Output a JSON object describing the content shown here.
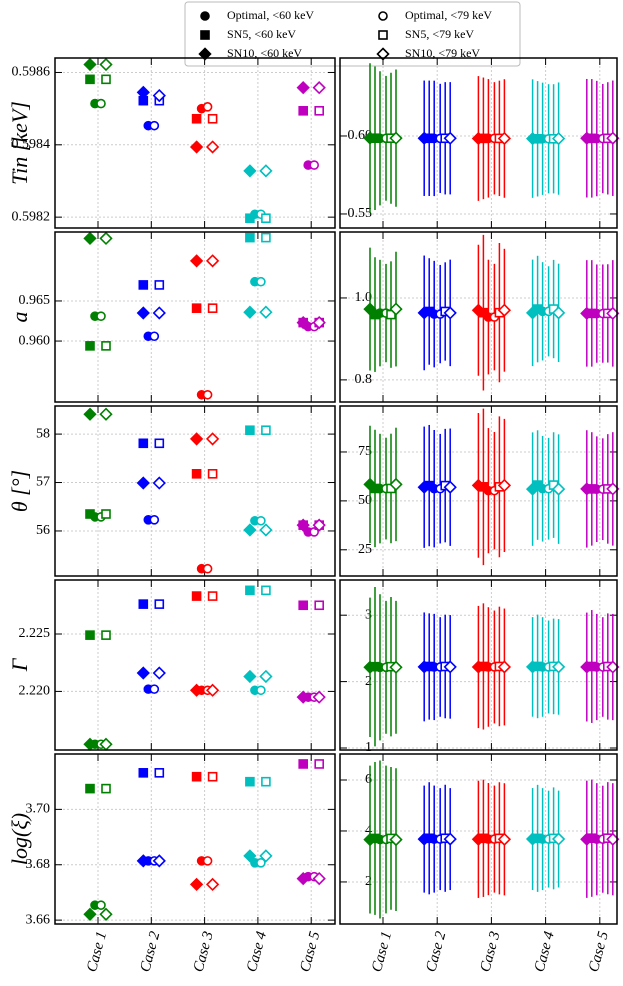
{
  "legend": [
    {
      "label": "Optimal, <60 keV",
      "marker": "circle",
      "filled": true
    },
    {
      "label": "Optimal, <79 keV",
      "marker": "circle",
      "filled": false
    },
    {
      "label": "SN5, <60 keV",
      "marker": "square",
      "filled": true
    },
    {
      "label": "SN5, <79 keV",
      "marker": "square",
      "filled": false
    },
    {
      "label": "SN10, <60 keV",
      "marker": "diamond",
      "filled": true
    },
    {
      "label": "SN10, <79 keV",
      "marker": "diamond",
      "filled": false
    }
  ],
  "categories": [
    "Case 1",
    "Case 2",
    "Case 3",
    "Case 4",
    "Case 5"
  ],
  "category_colors": [
    "#008000",
    "#0000ff",
    "#ff0000",
    "#00bfbf",
    "#bf00bf"
  ],
  "grid": true,
  "chart_data": [
    {
      "type": "dot",
      "ylabel": "Tin [keV]",
      "ylim": [
        0.59817,
        0.59864
      ],
      "yticks": [
        0.5982,
        0.5984,
        0.5986
      ],
      "series": [
        {
          "values": [
            0.598514,
            0.598453,
            0.5985,
            0.598208,
            0.598344
          ]
        },
        {
          "values": [
            0.598514,
            0.598453,
            0.598505,
            0.598208,
            0.598344
          ]
        },
        {
          "values": [
            0.598581,
            0.598522,
            0.598472,
            0.598197,
            0.598494
          ]
        },
        {
          "values": [
            0.598581,
            0.598522,
            0.598472,
            0.598197,
            0.598494
          ]
        },
        {
          "values": [
            0.598622,
            0.598545,
            0.598394,
            0.598328,
            0.598558
          ]
        },
        {
          "values": [
            0.598622,
            0.598536,
            0.598394,
            0.598328,
            0.598558
          ]
        }
      ]
    },
    {
      "type": "dot",
      "ylabel": "a",
      "ylim": [
        0.9524,
        0.9736
      ],
      "yticks": [
        {
          "value": 0.96,
          "label": "0.960"
        },
        0.965
      ],
      "series": [
        {
          "values": [
            0.9631,
            0.9606,
            0.9533,
            0.9674,
            0.9618
          ]
        },
        {
          "values": [
            0.9631,
            0.9606,
            0.9533,
            0.9674,
            0.9618
          ]
        },
        {
          "values": [
            0.9594,
            0.967,
            0.9641,
            0.9729,
            0.9623
          ]
        },
        {
          "values": [
            0.9594,
            0.967,
            0.9641,
            0.9729,
            0.9623
          ]
        },
        {
          "values": [
            0.9728,
            0.9635,
            0.97,
            0.9636,
            0.9623
          ]
        },
        {
          "values": [
            0.9728,
            0.9635,
            0.97,
            0.9636,
            0.9623
          ]
        }
      ]
    },
    {
      "type": "dot",
      "ylabel": "θ [°]",
      "ylim": [
        55.07,
        58.58
      ],
      "yticks": [
        56,
        57,
        58
      ],
      "series": [
        {
          "values": [
            56.29,
            56.23,
            55.22,
            56.21,
            55.98
          ]
        },
        {
          "values": [
            56.29,
            56.23,
            55.22,
            56.21,
            55.98
          ]
        },
        {
          "values": [
            56.35,
            57.81,
            57.18,
            58.08,
            56.12
          ]
        },
        {
          "values": [
            56.35,
            57.81,
            57.18,
            58.08,
            56.12
          ]
        },
        {
          "values": [
            58.41,
            56.99,
            57.9,
            56.02,
            56.12
          ]
        },
        {
          "values": [
            58.41,
            56.99,
            57.9,
            56.02,
            56.12
          ]
        }
      ]
    },
    {
      "type": "dot",
      "ylabel": "Γ",
      "ylim": [
        2.2149,
        2.2297
      ],
      "yticks": [
        {
          "value": 2.22,
          "label": "2.220"
        },
        2.225
      ],
      "series": [
        {
          "values": [
            2.2154,
            2.2202,
            2.2201,
            2.2201,
            2.2195
          ]
        },
        {
          "values": [
            2.2154,
            2.2202,
            2.2201,
            2.2201,
            2.2195
          ]
        },
        {
          "values": [
            2.2249,
            2.2276,
            2.2283,
            2.2288,
            2.2275
          ]
        },
        {
          "values": [
            2.2249,
            2.2276,
            2.2283,
            2.2288,
            2.2275
          ]
        },
        {
          "values": [
            2.2154,
            2.2216,
            2.2201,
            2.2213,
            2.2195
          ]
        },
        {
          "values": [
            2.2154,
            2.2216,
            2.2201,
            2.2213,
            2.2195
          ]
        }
      ]
    },
    {
      "type": "dot",
      "ylabel": "log(ξ)",
      "ylim": [
        3.6586,
        3.72
      ],
      "yticks": [
        3.66,
        3.68,
        {
          "value": 3.7,
          "label": "3.70"
        }
      ],
      "series": [
        {
          "values": [
            3.6654,
            3.6814,
            3.6814,
            3.6807,
            3.6757
          ]
        },
        {
          "values": [
            3.6654,
            3.6814,
            3.6814,
            3.6807,
            3.6757
          ]
        },
        {
          "values": [
            3.7075,
            3.7132,
            3.7118,
            3.71,
            3.7164
          ]
        },
        {
          "values": [
            3.7075,
            3.7132,
            3.7118,
            3.71,
            3.7164
          ]
        },
        {
          "values": [
            3.6621,
            3.6814,
            3.6729,
            3.6832,
            3.675
          ]
        },
        {
          "values": [
            3.6621,
            3.6814,
            3.6729,
            3.6832,
            3.675
          ]
        }
      ]
    },
    {
      "type": "errorbar",
      "ylim": [
        0.541,
        0.65
      ],
      "yticks": [
        0.55,
        {
          "value": 0.6,
          "label": "0.60"
        }
      ],
      "series": [
        {
          "values": [
            0.598514,
            0.598453,
            0.5985,
            0.598208,
            0.598344
          ],
          "errors": [
            0.043,
            0.037,
            0.038,
            0.036,
            0.037
          ]
        },
        {
          "values": [
            0.598514,
            0.598453,
            0.598505,
            0.598208,
            0.598344
          ],
          "errors": [
            0.04,
            0.035,
            0.036,
            0.035,
            0.035
          ]
        },
        {
          "values": [
            0.598581,
            0.598522,
            0.598472,
            0.598197,
            0.598494
          ],
          "errors": [
            0.046,
            0.037,
            0.039,
            0.037,
            0.038
          ]
        },
        {
          "values": [
            0.598581,
            0.598522,
            0.598472,
            0.598197,
            0.598494
          ],
          "errors": [
            0.042,
            0.036,
            0.037,
            0.035,
            0.036
          ]
        },
        {
          "values": [
            0.598622,
            0.598545,
            0.598394,
            0.598328,
            0.598558
          ],
          "errors": [
            0.048,
            0.037,
            0.04,
            0.038,
            0.038
          ]
        },
        {
          "values": [
            0.598622,
            0.598536,
            0.598394,
            0.598328,
            0.598558
          ],
          "errors": [
            0.044,
            0.036,
            0.038,
            0.036,
            0.037
          ]
        }
      ]
    },
    {
      "type": "errorbar",
      "ylim": [
        0.746,
        1.161
      ],
      "yticks": [
        0.8,
        {
          "value": 1,
          "label": "1.0"
        }
      ],
      "series": [
        {
          "values": [
            0.9631,
            0.9606,
            0.9533,
            0.9674,
            0.9618
          ],
          "errors": [
            0.13,
            0.13,
            0.14,
            0.12,
            0.12
          ]
        },
        {
          "values": [
            0.9631,
            0.9606,
            0.9533,
            0.9674,
            0.9618
          ],
          "errors": [
            0.12,
            0.12,
            0.13,
            0.11,
            0.12
          ]
        },
        {
          "values": [
            0.9594,
            0.967,
            0.9641,
            0.9729,
            0.9623
          ],
          "errors": [
            0.14,
            0.13,
            0.19,
            0.13,
            0.13
          ]
        },
        {
          "values": [
            0.9594,
            0.967,
            0.9641,
            0.9729,
            0.9623
          ],
          "errors": [
            0.13,
            0.12,
            0.17,
            0.12,
            0.12
          ]
        },
        {
          "values": [
            0.9728,
            0.9635,
            0.97,
            0.9636,
            0.9623
          ],
          "errors": [
            0.15,
            0.14,
            0.16,
            0.13,
            0.13
          ]
        },
        {
          "values": [
            0.9728,
            0.9635,
            0.97,
            0.9636,
            0.9623
          ],
          "errors": [
            0.14,
            0.13,
            0.15,
            0.12,
            0.13
          ]
        }
      ]
    },
    {
      "type": "errorbar",
      "ylim": [
        11.6,
        98.5
      ],
      "yticks": [
        25,
        50,
        75
      ],
      "series": [
        {
          "values": [
            56.29,
            56.23,
            55.22,
            56.21,
            55.98
          ],
          "errors": [
            28,
            30,
            32,
            27,
            27
          ]
        },
        {
          "values": [
            56.29,
            56.23,
            55.22,
            56.21,
            55.98
          ],
          "errors": [
            26,
            28,
            30,
            26,
            26
          ]
        },
        {
          "values": [
            56.35,
            57.81,
            57.18,
            58.08,
            56.12
          ],
          "errors": [
            30,
            31,
            40,
            28,
            29
          ]
        },
        {
          "values": [
            56.35,
            57.81,
            57.18,
            58.08,
            56.12
          ],
          "errors": [
            28,
            29,
            36,
            27,
            28
          ]
        },
        {
          "values": [
            58.41,
            56.99,
            57.9,
            56.02,
            56.12
          ],
          "errors": [
            30,
            31,
            37,
            29,
            30
          ]
        },
        {
          "values": [
            58.41,
            56.99,
            57.9,
            56.02,
            56.12
          ],
          "errors": [
            29,
            30,
            34,
            28,
            29
          ]
        }
      ]
    },
    {
      "type": "errorbar",
      "ylim": [
        0.97,
        3.53
      ],
      "yticks": [
        1,
        2,
        3
      ],
      "series": [
        {
          "values": [
            2.2154,
            2.2202,
            2.2201,
            2.2201,
            2.2195
          ],
          "errors": [
            1.1,
            0.8,
            0.9,
            0.75,
            0.8
          ]
        },
        {
          "values": [
            2.2154,
            2.2202,
            2.2201,
            2.2201,
            2.2195
          ],
          "errors": [
            1.0,
            0.75,
            0.85,
            0.7,
            0.75
          ]
        },
        {
          "values": [
            2.2249,
            2.2276,
            2.2283,
            2.2288,
            2.2275
          ],
          "errors": [
            1.2,
            0.8,
            0.95,
            0.78,
            0.85
          ]
        },
        {
          "values": [
            2.2249,
            2.2276,
            2.2283,
            2.2288,
            2.2275
          ],
          "errors": [
            1.05,
            0.78,
            0.9,
            0.72,
            0.8
          ]
        },
        {
          "values": [
            2.2154,
            2.2216,
            2.2201,
            2.2213,
            2.2195
          ],
          "errors": [
            1.05,
            0.82,
            0.92,
            0.75,
            0.82
          ]
        },
        {
          "values": [
            2.2154,
            2.2216,
            2.2201,
            2.2213,
            2.2195
          ],
          "errors": [
            1.0,
            0.78,
            0.88,
            0.72,
            0.8
          ]
        }
      ]
    },
    {
      "type": "errorbar",
      "ylim": [
        0.35,
        7.02
      ],
      "yticks": [
        2,
        4,
        6
      ],
      "series": [
        {
          "values": [
            3.6654,
            3.6814,
            3.6814,
            3.6807,
            3.6757
          ],
          "errors": [
            3.1,
            2.1,
            2.2,
            2.0,
            2.2
          ]
        },
        {
          "values": [
            3.6654,
            3.6814,
            3.6814,
            3.6807,
            3.6757
          ],
          "errors": [
            2.9,
            2.0,
            2.1,
            1.9,
            2.1
          ]
        },
        {
          "values": [
            3.7075,
            3.7132,
            3.7118,
            3.71,
            3.7164
          ],
          "errors": [
            3.0,
            2.2,
            2.3,
            2.1,
            2.3
          ]
        },
        {
          "values": [
            3.7075,
            3.7132,
            3.7118,
            3.71,
            3.7164
          ],
          "errors": [
            2.8,
            2.1,
            2.2,
            2.0,
            2.2
          ]
        },
        {
          "values": [
            3.6621,
            3.6814,
            3.6729,
            3.6832,
            3.675
          ],
          "errors": [
            2.9,
            2.1,
            2.3,
            2.0,
            2.3
          ]
        },
        {
          "values": [
            3.6621,
            3.6814,
            3.6729,
            3.6832,
            3.675
          ],
          "errors": [
            2.8,
            2.0,
            2.2,
            1.9,
            2.2
          ]
        }
      ]
    }
  ]
}
